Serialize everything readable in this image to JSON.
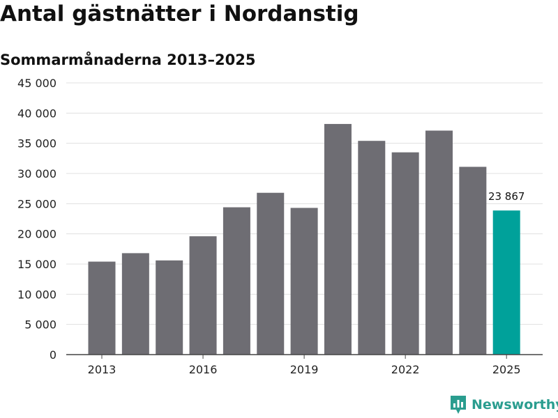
{
  "header": {
    "title": "Antal gästnätter i Nordanstig",
    "subtitle": "Sommarmånaderna 2013–2025"
  },
  "brand": {
    "name": "Newsworthy",
    "color": "#2a9d8f",
    "icon": "newsworthy-logo-icon"
  },
  "colors": {
    "bar": "#6e6d73",
    "highlight": "#00a19a",
    "grid": "#e0e0e0",
    "axis": "#444444"
  },
  "chart_data": {
    "type": "bar",
    "categories": [
      "2013",
      "2014",
      "2015",
      "2016",
      "2017",
      "2018",
      "2019",
      "2020",
      "2021",
      "2022",
      "2023",
      "2024",
      "2025"
    ],
    "values": [
      15400,
      16800,
      15600,
      19600,
      24400,
      26800,
      24300,
      38200,
      35400,
      33500,
      37100,
      31100,
      23867
    ],
    "highlight_index": 12,
    "data_labels": [
      {
        "index": 12,
        "text": "23 867"
      }
    ],
    "x_tick_labels": [
      "2013",
      "2016",
      "2019",
      "2022",
      "2025"
    ],
    "y_tick_labels": [
      "0",
      "5 000",
      "10 000",
      "15 000",
      "20 000",
      "25 000",
      "30 000",
      "35 000",
      "40 000",
      "45 000"
    ],
    "y_ticks": [
      0,
      5000,
      10000,
      15000,
      20000,
      25000,
      30000,
      35000,
      40000,
      45000
    ],
    "ylim": [
      0,
      45000
    ],
    "grid": true,
    "legend": "none",
    "title": "Antal gästnätter i Nordanstig",
    "subtitle": "Sommarmånaderna 2013–2025",
    "xlabel": "",
    "ylabel": ""
  }
}
